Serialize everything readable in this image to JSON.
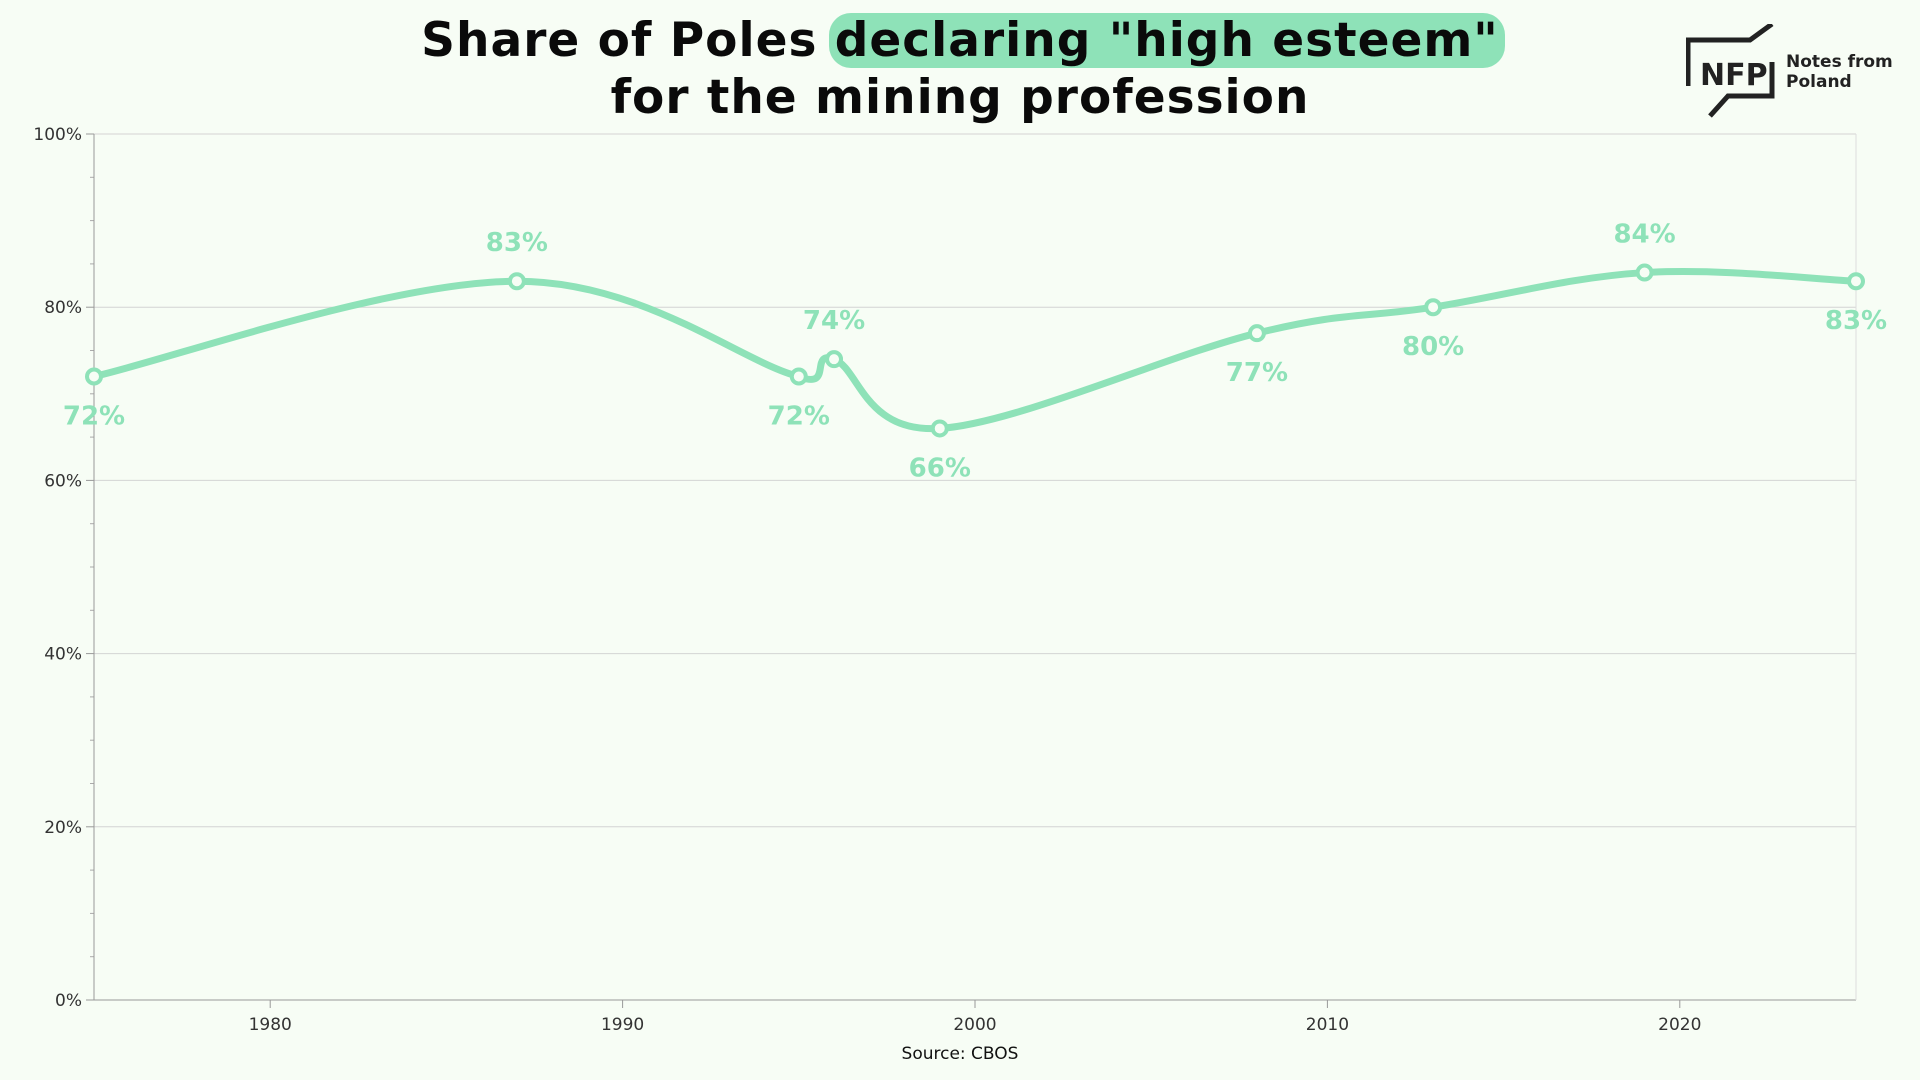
{
  "chart_data": {
    "type": "line",
    "title_parts": {
      "line1_before": "Share of Poles ",
      "line1_highlight": "declaring \"high esteem\"",
      "line2": "for the mining profession"
    },
    "xlabel": "",
    "ylabel": "",
    "xlim": [
      1975,
      2025
    ],
    "ylim": [
      0,
      100
    ],
    "x_ticks": [
      1980,
      1990,
      2000,
      2010,
      2020
    ],
    "y_ticks": [
      0,
      20,
      40,
      60,
      80,
      100
    ],
    "y_tick_labels": [
      "0%",
      "20%",
      "40%",
      "60%",
      "80%",
      "100%"
    ],
    "grid": true,
    "series": [
      {
        "color": "#8ee2b8",
        "points": [
          {
            "x": 1975,
            "y": 72,
            "label": "72%",
            "label_pos": "below"
          },
          {
            "x": 1987,
            "y": 83,
            "label": "83%",
            "label_pos": "above"
          },
          {
            "x": 1995,
            "y": 72,
            "label": "72%",
            "label_pos": "below"
          },
          {
            "x": 1996,
            "y": 74,
            "label": "74%",
            "label_pos": "above"
          },
          {
            "x": 1999,
            "y": 66,
            "label": "66%",
            "label_pos": "below"
          },
          {
            "x": 2008,
            "y": 77,
            "label": "77%",
            "label_pos": "below"
          },
          {
            "x": 2013,
            "y": 80,
            "label": "80%",
            "label_pos": "below"
          },
          {
            "x": 2019,
            "y": 84,
            "label": "84%",
            "label_pos": "above"
          },
          {
            "x": 2025,
            "y": 83,
            "label": "83%",
            "label_pos": "below"
          }
        ]
      }
    ],
    "source": "Source: CBOS"
  },
  "logo": {
    "mark": "NFP",
    "line1": "Notes from",
    "line2": "Poland"
  },
  "colors": {
    "accent": "#8ee2b8",
    "background": "#f7fdf5",
    "grid": "#d4d4d4"
  }
}
